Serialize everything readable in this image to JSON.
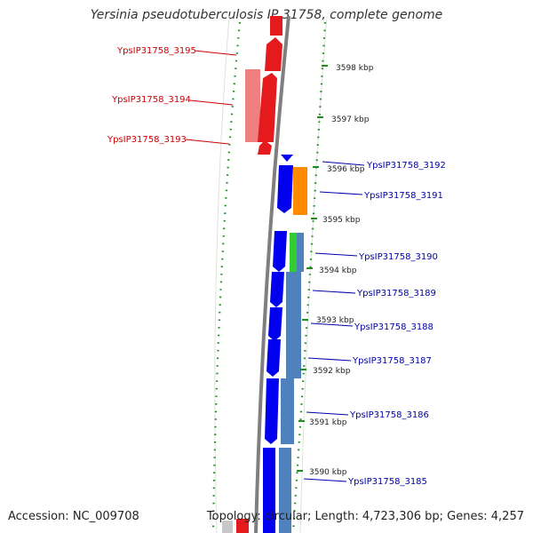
{
  "title": "Yersinia pseudotuberculosis IP 31758, complete genome",
  "footer": {
    "accession": "Accession: NC_009708",
    "summary": "Topology: circular; Length: 4,723,306 bp; Genes: 4,257"
  },
  "colors": {
    "forward": "#e41a1c",
    "forward_light": "#f08080",
    "reverse": "#0000ee",
    "reverse_steel": "#4f81bd",
    "orange": "#ff8c00",
    "green": "#33cc33",
    "backbone": "#808080",
    "gc_dots": "#228b22",
    "label_forward": "#cc0000",
    "label_reverse": "#0000aa"
  },
  "ticks": [
    {
      "label": "3598 kbp"
    },
    {
      "label": "3597 kbp"
    },
    {
      "label": "3596 kbp"
    },
    {
      "label": "3595 kbp"
    },
    {
      "label": "3594 kbp"
    },
    {
      "label": "3593 kbp"
    },
    {
      "label": "3592 kbp"
    },
    {
      "label": "3591 kbp"
    },
    {
      "label": "3590 kbp"
    }
  ],
  "forward_genes": [
    {
      "label": "YpsIP31758_3195"
    },
    {
      "label": "YpsIP31758_3194"
    },
    {
      "label": "YpsIP31758_3193"
    }
  ],
  "reverse_genes": [
    {
      "label": "YpsIP31758_3192"
    },
    {
      "label": "YpsIP31758_3191"
    },
    {
      "label": "YpsIP31758_3190"
    },
    {
      "label": "YpsIP31758_3189"
    },
    {
      "label": "YpsIP31758_3188"
    },
    {
      "label": "YpsIP31758_3187"
    },
    {
      "label": "YpsIP31758_3186"
    },
    {
      "label": "YpsIP31758_3185"
    }
  ]
}
